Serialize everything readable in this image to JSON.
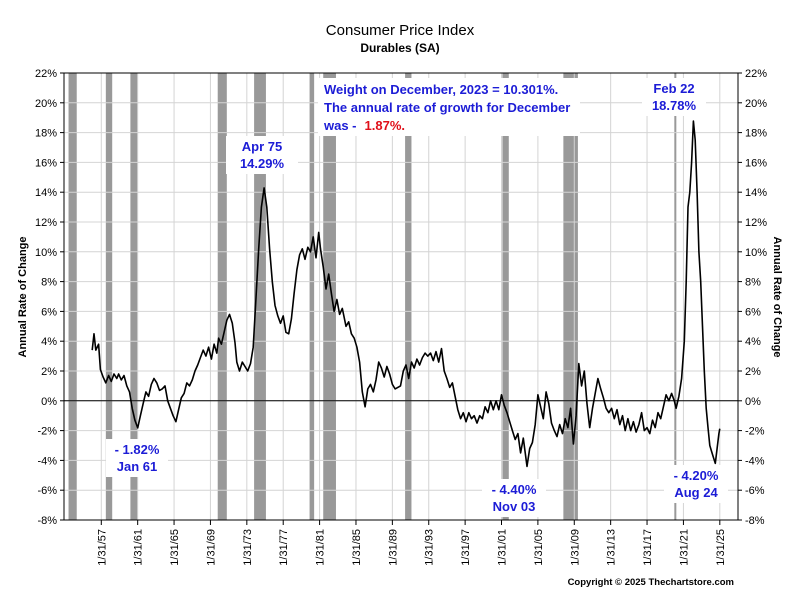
{
  "chart_data": {
    "type": "line",
    "title": "Consumer Price Index",
    "subtitle": "Durables (SA)",
    "ylabel_left": "Annual Rate of Change",
    "ylabel_right": "Annual Rate of Change",
    "xlabel": "",
    "ylim": [
      -8,
      22
    ],
    "yticks": [
      22,
      20,
      18,
      16,
      14,
      12,
      10,
      8,
      6,
      4,
      2,
      0,
      -2,
      -4,
      -6,
      -8
    ],
    "ytick_labels": [
      "22%",
      "20%",
      "18%",
      "16%",
      "14%",
      "12%",
      "10%",
      "8%",
      "6%",
      "4%",
      "2%",
      "0%",
      "-2%",
      "-4%",
      "-6%",
      "-8%"
    ],
    "xlim": [
      1953.0,
      2027.1
    ],
    "xtick_labels": [
      "1/31/57",
      "1/31/61",
      "1/31/65",
      "1/31/69",
      "1/31/73",
      "1/31/77",
      "1/31/81",
      "1/31/85",
      "1/31/89",
      "1/31/93",
      "1/31/97",
      "1/31/01",
      "1/31/05",
      "1/31/09",
      "1/31/13",
      "1/31/17",
      "1/31/21",
      "1/31/25"
    ],
    "xtick_values": [
      1957.1,
      1961.1,
      1965.1,
      1969.1,
      1973.1,
      1977.1,
      1981.1,
      1985.1,
      1989.1,
      1993.1,
      1997.1,
      2001.1,
      2005.1,
      2009.1,
      2013.1,
      2017.1,
      2021.1,
      2025.1
    ],
    "grid": true,
    "recessions": [
      [
        1953.5,
        1954.4
      ],
      [
        1957.6,
        1958.3
      ],
      [
        1960.3,
        1961.1
      ],
      [
        1969.9,
        1970.9
      ],
      [
        1973.9,
        1975.2
      ],
      [
        1980.0,
        1980.5
      ],
      [
        1981.5,
        1982.9
      ],
      [
        1990.5,
        1991.2
      ],
      [
        2001.2,
        2001.9
      ],
      [
        2007.9,
        2009.5
      ],
      [
        2020.1,
        2020.3
      ]
    ],
    "series": [
      {
        "color": "#000000",
        "points": [
          [
            1956.1,
            3.4
          ],
          [
            1956.3,
            4.5
          ],
          [
            1956.5,
            3.4
          ],
          [
            1956.8,
            3.8
          ],
          [
            1957.0,
            2.1
          ],
          [
            1957.3,
            1.6
          ],
          [
            1957.6,
            1.2
          ],
          [
            1957.9,
            1.7
          ],
          [
            1958.2,
            1.3
          ],
          [
            1958.5,
            1.8
          ],
          [
            1958.8,
            1.5
          ],
          [
            1959.0,
            1.8
          ],
          [
            1959.3,
            1.4
          ],
          [
            1959.6,
            1.7
          ],
          [
            1959.9,
            1.0
          ],
          [
            1960.2,
            0.6
          ],
          [
            1960.5,
            -0.5
          ],
          [
            1960.8,
            -1.3
          ],
          [
            1961.1,
            -1.82
          ],
          [
            1961.4,
            -1.0
          ],
          [
            1961.7,
            -0.2
          ],
          [
            1962.0,
            0.6
          ],
          [
            1962.3,
            0.3
          ],
          [
            1962.6,
            1.1
          ],
          [
            1962.9,
            1.5
          ],
          [
            1963.2,
            1.2
          ],
          [
            1963.5,
            0.7
          ],
          [
            1963.8,
            0.8
          ],
          [
            1964.1,
            1.0
          ],
          [
            1964.4,
            0.0
          ],
          [
            1964.7,
            -0.5
          ],
          [
            1965.0,
            -1.0
          ],
          [
            1965.3,
            -1.4
          ],
          [
            1965.6,
            -0.6
          ],
          [
            1965.9,
            0.2
          ],
          [
            1966.2,
            0.5
          ],
          [
            1966.5,
            1.2
          ],
          [
            1966.8,
            1.0
          ],
          [
            1967.1,
            1.4
          ],
          [
            1967.4,
            2.0
          ],
          [
            1967.7,
            2.4
          ],
          [
            1968.0,
            2.9
          ],
          [
            1968.3,
            3.4
          ],
          [
            1968.6,
            3.0
          ],
          [
            1968.9,
            3.6
          ],
          [
            1969.2,
            2.8
          ],
          [
            1969.5,
            3.8
          ],
          [
            1969.8,
            3.2
          ],
          [
            1970.0,
            4.2
          ],
          [
            1970.3,
            3.8
          ],
          [
            1970.6,
            4.6
          ],
          [
            1970.9,
            5.4
          ],
          [
            1971.2,
            5.8
          ],
          [
            1971.5,
            5.2
          ],
          [
            1971.8,
            3.9
          ],
          [
            1972.0,
            2.6
          ],
          [
            1972.3,
            2.0
          ],
          [
            1972.6,
            2.6
          ],
          [
            1972.9,
            2.3
          ],
          [
            1973.2,
            2.0
          ],
          [
            1973.5,
            2.5
          ],
          [
            1973.8,
            3.6
          ],
          [
            1974.1,
            6.8
          ],
          [
            1974.4,
            10.2
          ],
          [
            1974.7,
            13.0
          ],
          [
            1975.0,
            14.29
          ],
          [
            1975.3,
            13.0
          ],
          [
            1975.6,
            10.2
          ],
          [
            1975.9,
            8.0
          ],
          [
            1976.2,
            6.4
          ],
          [
            1976.5,
            5.7
          ],
          [
            1976.8,
            5.2
          ],
          [
            1977.1,
            5.7
          ],
          [
            1977.4,
            4.6
          ],
          [
            1977.7,
            4.5
          ],
          [
            1978.0,
            5.5
          ],
          [
            1978.3,
            7.2
          ],
          [
            1978.6,
            8.8
          ],
          [
            1978.9,
            9.8
          ],
          [
            1979.2,
            10.2
          ],
          [
            1979.5,
            9.5
          ],
          [
            1979.8,
            10.3
          ],
          [
            1980.1,
            10.0
          ],
          [
            1980.4,
            11.0
          ],
          [
            1980.7,
            9.6
          ],
          [
            1981.0,
            11.3
          ],
          [
            1981.2,
            10.2
          ],
          [
            1981.5,
            9.0
          ],
          [
            1981.8,
            7.5
          ],
          [
            1982.1,
            8.5
          ],
          [
            1982.4,
            7.2
          ],
          [
            1982.7,
            6.0
          ],
          [
            1983.0,
            6.8
          ],
          [
            1983.3,
            5.8
          ],
          [
            1983.6,
            6.2
          ],
          [
            1984.0,
            5.0
          ],
          [
            1984.3,
            5.3
          ],
          [
            1984.6,
            4.5
          ],
          [
            1984.9,
            4.2
          ],
          [
            1985.2,
            3.6
          ],
          [
            1985.5,
            2.6
          ],
          [
            1985.8,
            0.6
          ],
          [
            1986.1,
            -0.4
          ],
          [
            1986.4,
            0.8
          ],
          [
            1986.7,
            1.1
          ],
          [
            1987.0,
            0.6
          ],
          [
            1987.3,
            1.4
          ],
          [
            1987.6,
            2.6
          ],
          [
            1987.9,
            2.2
          ],
          [
            1988.2,
            1.6
          ],
          [
            1988.5,
            2.3
          ],
          [
            1988.8,
            1.8
          ],
          [
            1989.1,
            1.1
          ],
          [
            1989.4,
            0.8
          ],
          [
            1989.7,
            0.9
          ],
          [
            1990.0,
            1.0
          ],
          [
            1990.3,
            2.0
          ],
          [
            1990.6,
            2.4
          ],
          [
            1990.9,
            1.5
          ],
          [
            1991.2,
            2.6
          ],
          [
            1991.5,
            2.2
          ],
          [
            1991.8,
            2.8
          ],
          [
            1992.1,
            2.4
          ],
          [
            1992.4,
            2.9
          ],
          [
            1992.7,
            3.2
          ],
          [
            1993.0,
            3.0
          ],
          [
            1993.3,
            3.2
          ],
          [
            1993.6,
            2.7
          ],
          [
            1993.9,
            3.3
          ],
          [
            1994.2,
            2.6
          ],
          [
            1994.5,
            3.5
          ],
          [
            1994.8,
            2.0
          ],
          [
            1995.1,
            1.5
          ],
          [
            1995.4,
            0.9
          ],
          [
            1995.7,
            1.2
          ],
          [
            1996.0,
            0.3
          ],
          [
            1996.3,
            -0.6
          ],
          [
            1996.6,
            -1.2
          ],
          [
            1996.9,
            -0.8
          ],
          [
            1997.2,
            -1.4
          ],
          [
            1997.5,
            -0.8
          ],
          [
            1997.8,
            -1.2
          ],
          [
            1998.1,
            -1.0
          ],
          [
            1998.4,
            -1.5
          ],
          [
            1998.7,
            -1.0
          ],
          [
            1999.0,
            -1.2
          ],
          [
            1999.3,
            -0.4
          ],
          [
            1999.6,
            -0.8
          ],
          [
            1999.9,
            0.0
          ],
          [
            2000.2,
            -0.6
          ],
          [
            2000.5,
            0.0
          ],
          [
            2000.8,
            -0.6
          ],
          [
            2001.1,
            0.4
          ],
          [
            2001.4,
            -0.3
          ],
          [
            2001.7,
            -0.8
          ],
          [
            2002.0,
            -1.4
          ],
          [
            2002.3,
            -2.0
          ],
          [
            2002.6,
            -2.6
          ],
          [
            2002.9,
            -2.2
          ],
          [
            2003.2,
            -3.5
          ],
          [
            2003.5,
            -2.5
          ],
          [
            2003.9,
            -4.4
          ],
          [
            2004.2,
            -3.2
          ],
          [
            2004.5,
            -2.8
          ],
          [
            2004.8,
            -1.6
          ],
          [
            2005.1,
            0.4
          ],
          [
            2005.4,
            -0.4
          ],
          [
            2005.7,
            -1.2
          ],
          [
            2006.0,
            0.6
          ],
          [
            2006.3,
            -0.2
          ],
          [
            2006.6,
            -1.5
          ],
          [
            2006.9,
            -2.0
          ],
          [
            2007.2,
            -2.4
          ],
          [
            2007.5,
            -1.6
          ],
          [
            2007.8,
            -2.2
          ],
          [
            2008.1,
            -1.2
          ],
          [
            2008.4,
            -1.8
          ],
          [
            2008.7,
            -0.5
          ],
          [
            2009.0,
            -2.9
          ],
          [
            2009.3,
            -1.0
          ],
          [
            2009.6,
            2.5
          ],
          [
            2009.9,
            1.0
          ],
          [
            2010.2,
            2.0
          ],
          [
            2010.5,
            -0.2
          ],
          [
            2010.8,
            -1.8
          ],
          [
            2011.1,
            -0.5
          ],
          [
            2011.4,
            0.5
          ],
          [
            2011.7,
            1.5
          ],
          [
            2012.0,
            0.8
          ],
          [
            2012.3,
            0.2
          ],
          [
            2012.6,
            -0.5
          ],
          [
            2012.9,
            -0.8
          ],
          [
            2013.2,
            -0.5
          ],
          [
            2013.5,
            -1.2
          ],
          [
            2013.8,
            -0.6
          ],
          [
            2014.1,
            -1.6
          ],
          [
            2014.4,
            -1.0
          ],
          [
            2014.7,
            -2.0
          ],
          [
            2015.0,
            -1.2
          ],
          [
            2015.3,
            -2.0
          ],
          [
            2015.6,
            -1.4
          ],
          [
            2015.9,
            -2.1
          ],
          [
            2016.2,
            -1.6
          ],
          [
            2016.5,
            -0.8
          ],
          [
            2016.8,
            -2.0
          ],
          [
            2017.1,
            -1.8
          ],
          [
            2017.4,
            -2.2
          ],
          [
            2017.7,
            -1.3
          ],
          [
            2018.0,
            -1.8
          ],
          [
            2018.3,
            -0.8
          ],
          [
            2018.6,
            -1.2
          ],
          [
            2018.9,
            -0.4
          ],
          [
            2019.2,
            0.4
          ],
          [
            2019.5,
            0.0
          ],
          [
            2019.8,
            0.5
          ],
          [
            2020.1,
            0.0
          ],
          [
            2020.3,
            -0.5
          ],
          [
            2020.6,
            0.3
          ],
          [
            2020.9,
            1.5
          ],
          [
            2021.2,
            4.0
          ],
          [
            2021.4,
            8.0
          ],
          [
            2021.6,
            13.0
          ],
          [
            2021.8,
            14.0
          ],
          [
            2022.0,
            16.0
          ],
          [
            2022.2,
            18.78
          ],
          [
            2022.4,
            17.5
          ],
          [
            2022.6,
            14.0
          ],
          [
            2022.8,
            10.0
          ],
          [
            2023.0,
            8.0
          ],
          [
            2023.2,
            5.0
          ],
          [
            2023.4,
            2.0
          ],
          [
            2023.6,
            -0.5
          ],
          [
            2023.8,
            -1.8
          ],
          [
            2024.0,
            -3.0
          ],
          [
            2024.2,
            -3.4
          ],
          [
            2024.4,
            -3.8
          ],
          [
            2024.6,
            -4.2
          ],
          [
            2024.8,
            -3.2
          ],
          [
            2025.0,
            -2.2
          ],
          [
            2025.1,
            -1.87
          ]
        ]
      }
    ]
  },
  "annotations": {
    "weight_line1": "Weight on December, 2023 = 10.301%.",
    "weight_line2": "The annual rate of growth for December",
    "weight_line3_prefix": "was -",
    "weight_line3_value": "1.87%.",
    "apr75_label": "Apr 75",
    "apr75_value": "14.29%",
    "feb22_label": "Feb 22",
    "feb22_value": "18.78%",
    "jan61_value": "- 1.82%",
    "jan61_label": "Jan 61",
    "nov03_value": "- 4.40%",
    "nov03_label": "Nov 03",
    "aug24_value": "- 4.20%",
    "aug24_label": "Aug 24"
  },
  "colors": {
    "annotation_blue": "#1c1cd6",
    "highlight_red": "#e0101a",
    "recession_gray": "#999999",
    "line": "#000000"
  },
  "copyright": "Copyright © 2025 Thechartstore.com"
}
